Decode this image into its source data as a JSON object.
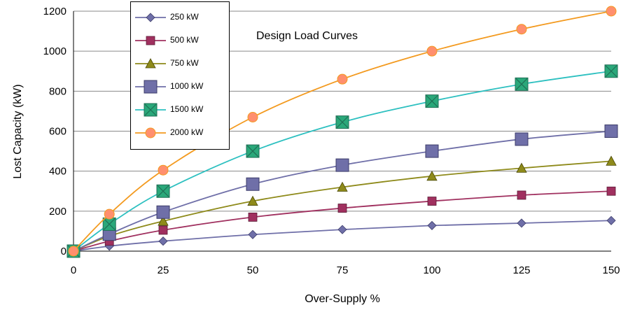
{
  "chart_data": {
    "type": "line",
    "title": "",
    "annotation": "Design Load Curves",
    "xlabel": "Over-Supply %",
    "ylabel": "Lost Capacity (kW)",
    "x": [
      0,
      10,
      25,
      50,
      75,
      100,
      125,
      150
    ],
    "x_ticks": [
      0,
      25,
      50,
      75,
      100,
      125,
      150
    ],
    "y_ticks": [
      0,
      200,
      400,
      600,
      800,
      1000,
      1200
    ],
    "xlim": [
      0,
      150
    ],
    "ylim": [
      0,
      1200
    ],
    "grid": "horizontal",
    "legend_position": "top-left",
    "series": [
      {
        "name": "250 kW",
        "color": "#6f6fa8",
        "marker": "diamond",
        "values": [
          0,
          25,
          50,
          83,
          108,
          128,
          140,
          153
        ]
      },
      {
        "name": "500 kW",
        "color": "#a0305f",
        "marker": "square",
        "values": [
          0,
          50,
          105,
          170,
          215,
          250,
          280,
          300
        ]
      },
      {
        "name": "750 kW",
        "color": "#8e8a1a",
        "marker": "triangle",
        "values": [
          0,
          75,
          150,
          250,
          320,
          375,
          415,
          450
        ]
      },
      {
        "name": "1000 kW",
        "color": "#6f6fa8",
        "marker": "square-large",
        "values": [
          0,
          85,
          195,
          335,
          430,
          500,
          560,
          600
        ]
      },
      {
        "name": "1500 kW",
        "color": "#2dc0c0",
        "marker": "square-x",
        "values": [
          0,
          135,
          300,
          500,
          645,
          750,
          835,
          900
        ]
      },
      {
        "name": "2000 kW",
        "color": "#f39a1f",
        "marker": "circle",
        "values": [
          0,
          185,
          405,
          670,
          860,
          1000,
          1110,
          1200
        ]
      }
    ]
  }
}
